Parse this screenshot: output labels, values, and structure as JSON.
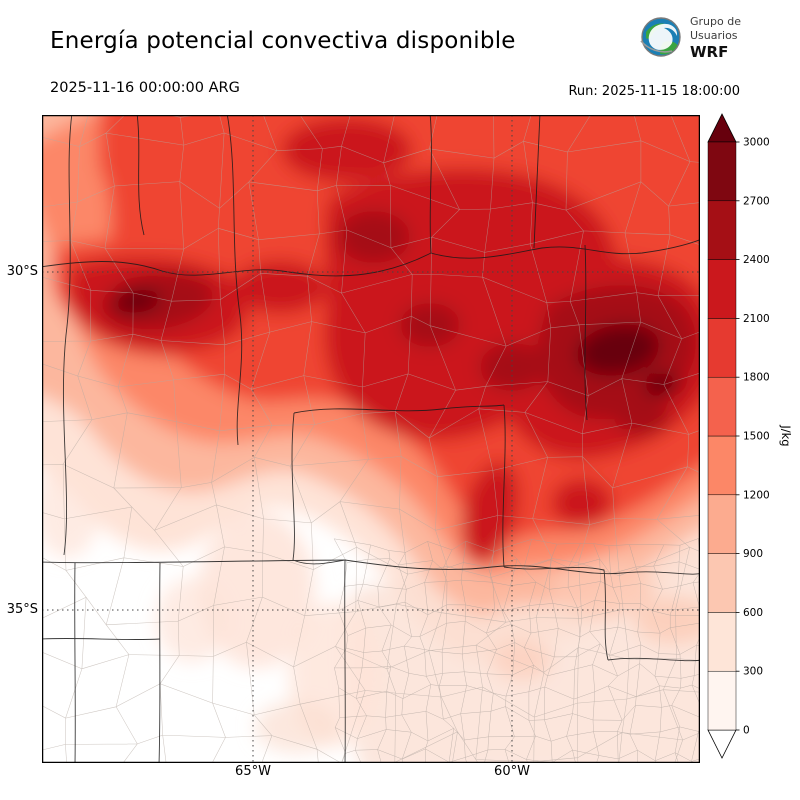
{
  "header": {
    "title": "Energía potencial convectiva disponible",
    "valid_time": "2025-11-16 00:00:00 ARG",
    "run_label": "Run: 2025-11-15 18:00:00",
    "logo": {
      "line1": "Grupo de",
      "line2": "Usuarios",
      "line3": "WRF"
    }
  },
  "map": {
    "lat_labels": [
      "30°S",
      "35°S"
    ],
    "lon_labels": [
      "65°W",
      "60°W"
    ]
  },
  "colorbar": {
    "unit": "J/kg",
    "ticks": [
      0,
      300,
      600,
      900,
      1200,
      1500,
      1800,
      2100,
      2400,
      2700,
      3000
    ],
    "segment_colors": [
      "#fff5f0",
      "#fee5d8",
      "#fcc7b1",
      "#fcab8f",
      "#fc8767",
      "#f4624d",
      "#e63a30",
      "#cb181d",
      "#a50f15",
      "#7f0711"
    ],
    "over_color": "#67000d",
    "under_color": "#ffffff"
  },
  "chart_data": {
    "type": "heatmap",
    "title": "Energía potencial convectiva disponible",
    "units": "J/kg",
    "levels": [
      0,
      300,
      600,
      900,
      1200,
      1500,
      1800,
      2100,
      2400,
      2700,
      3000
    ],
    "lat_ticks": [
      "30°S",
      "35°S"
    ],
    "lon_ticks": [
      "65°W",
      "60°W"
    ],
    "valid_time": "2025-11-16 00:00:00 ARG",
    "run": "2025-11-15 18:00:00",
    "legend_position": "right"
  }
}
